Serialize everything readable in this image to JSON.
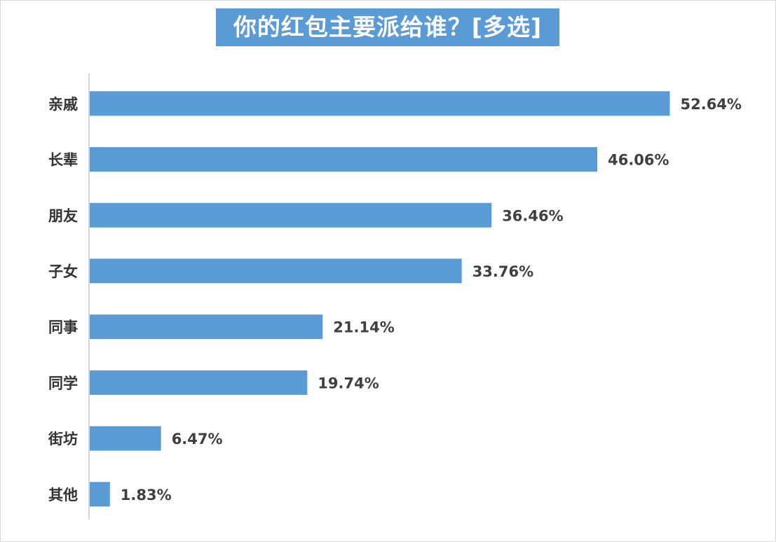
{
  "chart_data": {
    "type": "bar",
    "orientation": "horizontal",
    "title": "你的红包主要派给谁？[多选]",
    "categories": [
      "亲戚",
      "长辈",
      "朋友",
      "子女",
      "同事",
      "同学",
      "街坊",
      "其他"
    ],
    "values": [
      52.64,
      46.06,
      36.46,
      33.76,
      21.14,
      19.74,
      6.47,
      1.83
    ],
    "value_labels": [
      "52.64%",
      "46.06%",
      "36.46%",
      "33.76%",
      "21.14%",
      "19.74%",
      "6.47%",
      "1.83%"
    ],
    "xlabel": "",
    "ylabel": "",
    "xlim": [
      0,
      70
    ],
    "grid": false,
    "legend": "none",
    "colors": {
      "bar": "#5b9bd5",
      "title_bg": "#5b9bd5",
      "title_text": "#ffffff",
      "axis": "#c8c8c8",
      "label": "#333333"
    }
  }
}
